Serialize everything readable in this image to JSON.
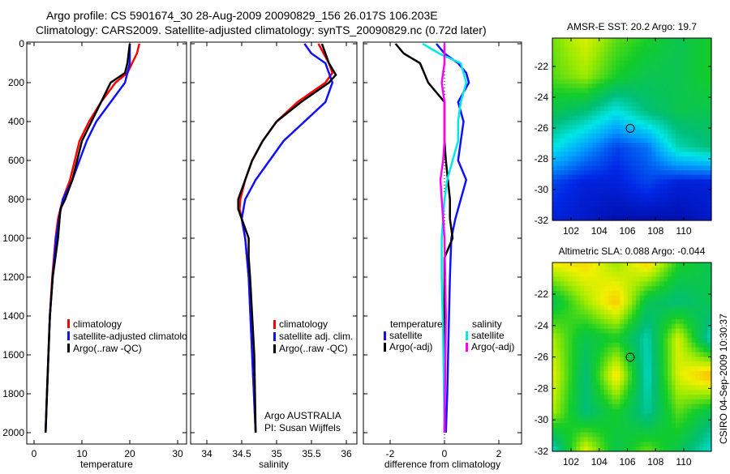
{
  "title_line1": "Argo profile: CS 5901674_30 28-Aug-2009 20090829_156 26.017S 106.203E",
  "title_line2": "Climatology: CARS2009. Satellite-adjusted climatology: synTS_20090829.nc (0.72d later)",
  "footer": "CSIRO 04-Sep-2009 10:30:37",
  "colors": {
    "red": "#ff0000",
    "blue": "#1010ff",
    "black": "#000000",
    "cyan": "#00e8e8",
    "magenta": "#ff00ff"
  },
  "chart_data": [
    {
      "type": "line",
      "name": "temperature-profile",
      "xlabel": "temperature",
      "ylabel": "",
      "xlim": [
        -2,
        32
      ],
      "ylim": [
        2050,
        0
      ],
      "xticks": [
        "0",
        "10",
        "20",
        "30"
      ],
      "xtick_values": [
        0,
        10,
        20,
        30
      ],
      "yticks": [
        "0",
        "200",
        "400",
        "600",
        "800",
        "1000",
        "1200",
        "1400",
        "1600",
        "1800",
        "2000"
      ],
      "legend": [
        "climatology",
        "satellite-adjusted climatolog",
        "Argo(..raw -QC)"
      ],
      "series": [
        {
          "name": "climatology",
          "color": "red",
          "depth": [
            0,
            50,
            100,
            150,
            200,
            300,
            400,
            500,
            600,
            700,
            800,
            900,
            1000,
            1200,
            1400,
            1600,
            1800,
            2000
          ],
          "values": [
            22,
            21.5,
            20.5,
            19.5,
            17,
            14,
            11.5,
            9.5,
            8.5,
            7.5,
            6,
            5,
            4.5,
            3.8,
            3.3,
            3,
            2.7,
            2.4
          ]
        },
        {
          "name": "satellite-adjusted climatology",
          "color": "blue",
          "depth": [
            0,
            100,
            200,
            300,
            400,
            500,
            600,
            700,
            800,
            900,
            1000,
            1200,
            1400,
            1600,
            1800,
            2000
          ],
          "values": [
            20,
            20,
            19,
            16,
            13,
            11,
            9.5,
            8,
            6,
            5.2,
            4.6,
            3.9,
            3.3,
            3,
            2.7,
            2.4
          ]
        },
        {
          "name": "Argo(..raw -QC)",
          "color": "black",
          "depth": [
            0,
            100,
            150,
            200,
            300,
            400,
            500,
            600,
            700,
            800,
            850,
            1000,
            1200,
            1400,
            1600,
            1800,
            2000
          ],
          "values": [
            20,
            19.5,
            19,
            16,
            14,
            12,
            10,
            9,
            8,
            6.5,
            5.5,
            5,
            3.9,
            3.3,
            3,
            2.7,
            2.4
          ]
        }
      ]
    },
    {
      "type": "line",
      "name": "salinity-profile",
      "xlabel": "salinity",
      "xlim": [
        34.25,
        36.15
      ],
      "ylim": [
        2050,
        0
      ],
      "xticks": [
        "34",
        "34.5",
        "35",
        "35.5",
        "36"
      ],
      "xtick_values": [
        34,
        34.5,
        35,
        35.5,
        36
      ],
      "legend": [
        "climatology",
        "satellite adj. clim.",
        "Argo(..raw -QC)"
      ],
      "annotation": [
        "Argo AUSTRALIA",
        "PI: Susan Wijffels"
      ],
      "series": [
        {
          "name": "climatology",
          "color": "red",
          "depth": [
            0,
            100,
            150,
            200,
            250,
            300,
            400,
            500,
            600,
            700,
            800,
            850,
            900,
            1000,
            1200,
            1600,
            2000
          ],
          "values": [
            35.6,
            35.75,
            35.8,
            35.7,
            35.5,
            35.3,
            35.0,
            34.8,
            34.65,
            34.55,
            34.48,
            34.47,
            34.5,
            34.55,
            34.6,
            34.65,
            34.7
          ]
        },
        {
          "name": "satellite adj. clim.",
          "color": "blue",
          "depth": [
            0,
            50,
            100,
            200,
            300,
            400,
            500,
            600,
            700,
            800,
            900,
            1000,
            1200,
            1600,
            2000
          ],
          "values": [
            35.4,
            35.5,
            35.7,
            35.8,
            35.7,
            35.4,
            35.1,
            34.9,
            34.7,
            34.55,
            34.5,
            34.55,
            34.6,
            34.65,
            34.7
          ]
        },
        {
          "name": "Argo(..raw -QC)",
          "color": "black",
          "depth": [
            0,
            100,
            160,
            200,
            300,
            400,
            500,
            600,
            700,
            800,
            850,
            900,
            1000,
            1100,
            1200,
            1400,
            1600,
            2000
          ],
          "values": [
            35.65,
            35.75,
            35.85,
            35.75,
            35.35,
            35.0,
            34.8,
            34.65,
            34.55,
            34.45,
            34.45,
            34.5,
            34.6,
            34.6,
            34.62,
            34.65,
            34.68,
            34.7
          ]
        }
      ]
    },
    {
      "type": "line",
      "name": "difference-profile",
      "xlabel": "difference from climatology",
      "xlim": [
        -3,
        2.9
      ],
      "ylim": [
        2050,
        0
      ],
      "xticks": [
        "-2",
        "0",
        "2"
      ],
      "xtick_values": [
        -2,
        0,
        2
      ],
      "legend_temperature": {
        "title": "temperature",
        "items": [
          "satellite",
          "Argo(-adj)"
        ]
      },
      "legend_salinity": {
        "title": "salinity",
        "items": [
          "satellite",
          "Argo(-adj)"
        ]
      },
      "series": [
        {
          "name": "temperature satellite",
          "color": "blue",
          "depth": [
            0,
            50,
            100,
            150,
            200,
            300,
            400,
            500,
            600,
            700,
            800,
            900,
            1000,
            1200,
            1500,
            1800,
            2000
          ],
          "values": [
            -0.3,
            0,
            0.5,
            0.8,
            0.9,
            0.5,
            0.7,
            0.6,
            0.5,
            0.8,
            0.6,
            0.4,
            0.25,
            0.2,
            0.15,
            0.1,
            0.05
          ]
        },
        {
          "name": "temperature Argo(-adj)",
          "color": "black",
          "depth": [
            0,
            50,
            100,
            200,
            300,
            400,
            500,
            600,
            800,
            900,
            1000,
            1100,
            1400,
            2000
          ],
          "values": [
            -1.8,
            -1.5,
            -0.9,
            -0.6,
            0,
            0,
            0,
            0.05,
            0.2,
            0.2,
            0.3,
            0,
            0,
            0
          ]
        },
        {
          "name": "salinity satellite",
          "color": "cyan",
          "depth": [
            0,
            50,
            100,
            200,
            300,
            400,
            500,
            600,
            700,
            800,
            1000,
            1200,
            1500,
            2000
          ],
          "values": [
            -0.8,
            -0.2,
            0.6,
            0.8,
            0.6,
            0.5,
            0.5,
            0.3,
            0.1,
            0,
            -0.1,
            -0.1,
            -0.05,
            0
          ]
        },
        {
          "name": "salinity Argo(-adj)",
          "color": "magenta",
          "depth": [
            0,
            100,
            200,
            300,
            400,
            500,
            600,
            700,
            800,
            900,
            1000,
            1400,
            2000
          ],
          "values": [
            0,
            0,
            -0.1,
            0,
            0,
            0,
            -0.05,
            -0.15,
            -0.1,
            -0.05,
            0,
            0.05,
            0
          ]
        }
      ]
    },
    {
      "type": "heatmap",
      "name": "sst-map",
      "title": "AMSR-E SST: 20.2  Argo: 19.7",
      "xlim": [
        100.7,
        112
      ],
      "ylim": [
        -32,
        -20.2
      ],
      "xticks": [
        "102",
        "104",
        "106",
        "108",
        "110"
      ],
      "xtick_values": [
        102,
        104,
        106,
        108,
        110
      ],
      "yticks": [
        "-22",
        "-24",
        "-26",
        "-28",
        "-30",
        "-32"
      ],
      "ytick_values": [
        -22,
        -24,
        -26,
        -28,
        -30,
        -32
      ],
      "marker": {
        "lon": 106.203,
        "lat": -26.017
      },
      "field_normalized": [
        [
          0.62,
          0.7,
          0.6,
          0.55,
          0.5,
          0.55
        ],
        [
          0.6,
          0.65,
          0.55,
          0.5,
          0.5,
          0.55
        ],
        [
          0.5,
          0.45,
          0.35,
          0.45,
          0.5,
          0.5
        ],
        [
          0.35,
          0.25,
          0.15,
          0.2,
          0.4,
          0.45
        ],
        [
          0.15,
          0.1,
          0.1,
          0.15,
          0.1,
          0.1
        ],
        [
          0.1,
          0.08,
          0.05,
          0.05,
          0.05,
          0.08
        ]
      ]
    },
    {
      "type": "heatmap",
      "name": "sla-map",
      "title": "Altimetric SLA: 0.088  Argo: -0.044",
      "xlim": [
        100.7,
        112
      ],
      "ylim": [
        -32,
        -20.2
      ],
      "xticks": [
        "102",
        "104",
        "106",
        "108",
        "110"
      ],
      "xtick_values": [
        102,
        104,
        106,
        108,
        110
      ],
      "yticks": [
        "-22",
        "-24",
        "-26",
        "-28",
        "-30",
        "-32"
      ],
      "ytick_values": [
        -22,
        -24,
        -26,
        -28,
        -30,
        -32
      ],
      "marker": {
        "lon": 106.203,
        "lat": -26.017
      },
      "field_normalized": [
        [
          0.72,
          0.75,
          0.65,
          0.75,
          0.55,
          0.5
        ],
        [
          0.5,
          0.65,
          0.78,
          0.5,
          0.45,
          0.5
        ],
        [
          0.65,
          0.5,
          0.55,
          0.4,
          0.7,
          0.4
        ],
        [
          0.7,
          0.45,
          0.75,
          0.38,
          0.7,
          0.8
        ],
        [
          0.65,
          0.45,
          0.55,
          0.42,
          0.6,
          0.5
        ],
        [
          0.4,
          0.7,
          0.5,
          0.6,
          0.5,
          0.38
        ]
      ]
    }
  ]
}
